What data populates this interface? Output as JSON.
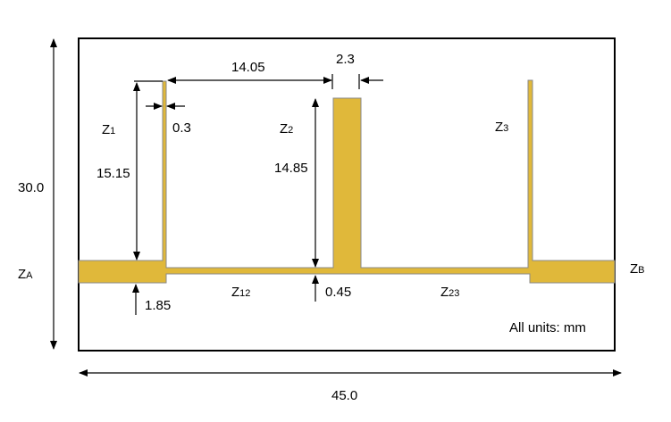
{
  "colors": {
    "conductor": "#E0B83A",
    "conductor_edge": "#8a8a8a",
    "lines": "#000000"
  },
  "dimensions": {
    "height": "30.0",
    "width": "45.0",
    "stub1_length": "15.15",
    "stub1_width": "0.3",
    "stub_spacing": "14.05",
    "stub2_width": "2.3",
    "stub2_length": "14.85",
    "feed_width": "1.85",
    "line_width": "0.45"
  },
  "labels": {
    "z1": {
      "main": "Z",
      "sub": "1"
    },
    "z2": {
      "main": "Z",
      "sub": "2"
    },
    "z3": {
      "main": "Z",
      "sub": "3"
    },
    "za": {
      "main": "Z",
      "sub": "A"
    },
    "zb": {
      "main": "Z",
      "sub": "B"
    },
    "z12": {
      "main": "Z",
      "sub": "12"
    },
    "z23": {
      "main": "Z",
      "sub": "23"
    }
  },
  "units_note": "All units: mm"
}
